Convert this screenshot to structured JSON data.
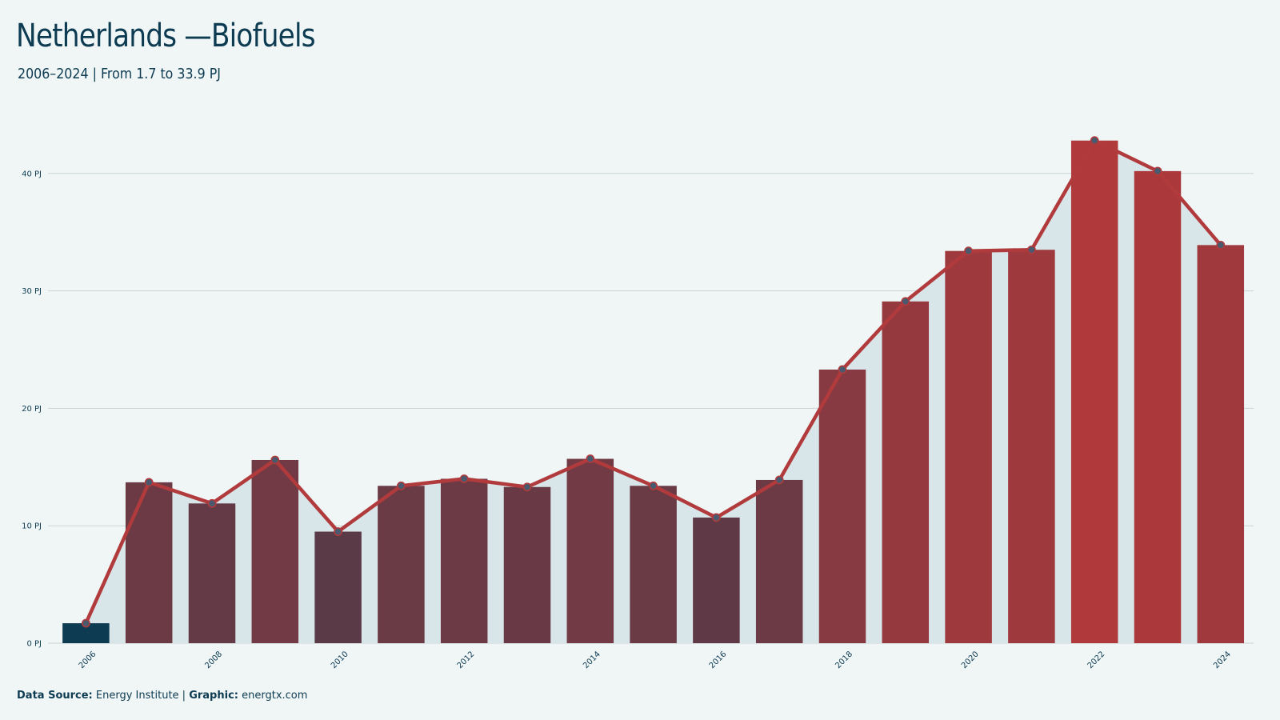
{
  "header": {
    "title": "Netherlands —Biofuels",
    "subtitle": "2006–2024 | From 1.7 to 33.9 PJ"
  },
  "footer": {
    "source_label": "Data Source:",
    "source_value": "Energy Institute |",
    "graphic_label": "Graphic:",
    "graphic_value": "energtx.com"
  },
  "colors": {
    "background": "#f0f6f6",
    "area_fill": "#d8e5e9",
    "line": "#b03a3c",
    "text": "#0d3b52",
    "gridline": "#c9d3d6",
    "bar_low": "#0d3b52",
    "bar_high": "#b0393b"
  },
  "chart_data": {
    "type": "bar",
    "title": "Netherlands —Biofuels",
    "subtitle": "2006–2024 | From 1.7 to 33.9 PJ",
    "xlabel": "",
    "ylabel": "",
    "unit": "PJ",
    "ylim": [
      0,
      44
    ],
    "y_ticks": [
      0,
      10,
      20,
      30,
      40
    ],
    "y_tick_labels": [
      "0 PJ",
      "10 PJ",
      "20 PJ",
      "30 PJ",
      "40 PJ"
    ],
    "x_tick_labels": [
      "2006",
      "2008",
      "2010",
      "2012",
      "2014",
      "2016",
      "2018",
      "2020",
      "2022",
      "2024"
    ],
    "grid": true,
    "legend": "none",
    "overlay": "line with markers and shaded area",
    "categories": [
      "2006",
      "2007",
      "2008",
      "2009",
      "2010",
      "2011",
      "2012",
      "2013",
      "2014",
      "2015",
      "2016",
      "2017",
      "2018",
      "2019",
      "2020",
      "2021",
      "2022",
      "2023",
      "2024"
    ],
    "values": [
      1.7,
      13.7,
      11.9,
      15.6,
      9.5,
      13.4,
      14.0,
      13.3,
      15.7,
      13.4,
      10.7,
      13.9,
      23.3,
      29.1,
      33.4,
      33.5,
      42.8,
      40.2,
      33.9
    ]
  }
}
